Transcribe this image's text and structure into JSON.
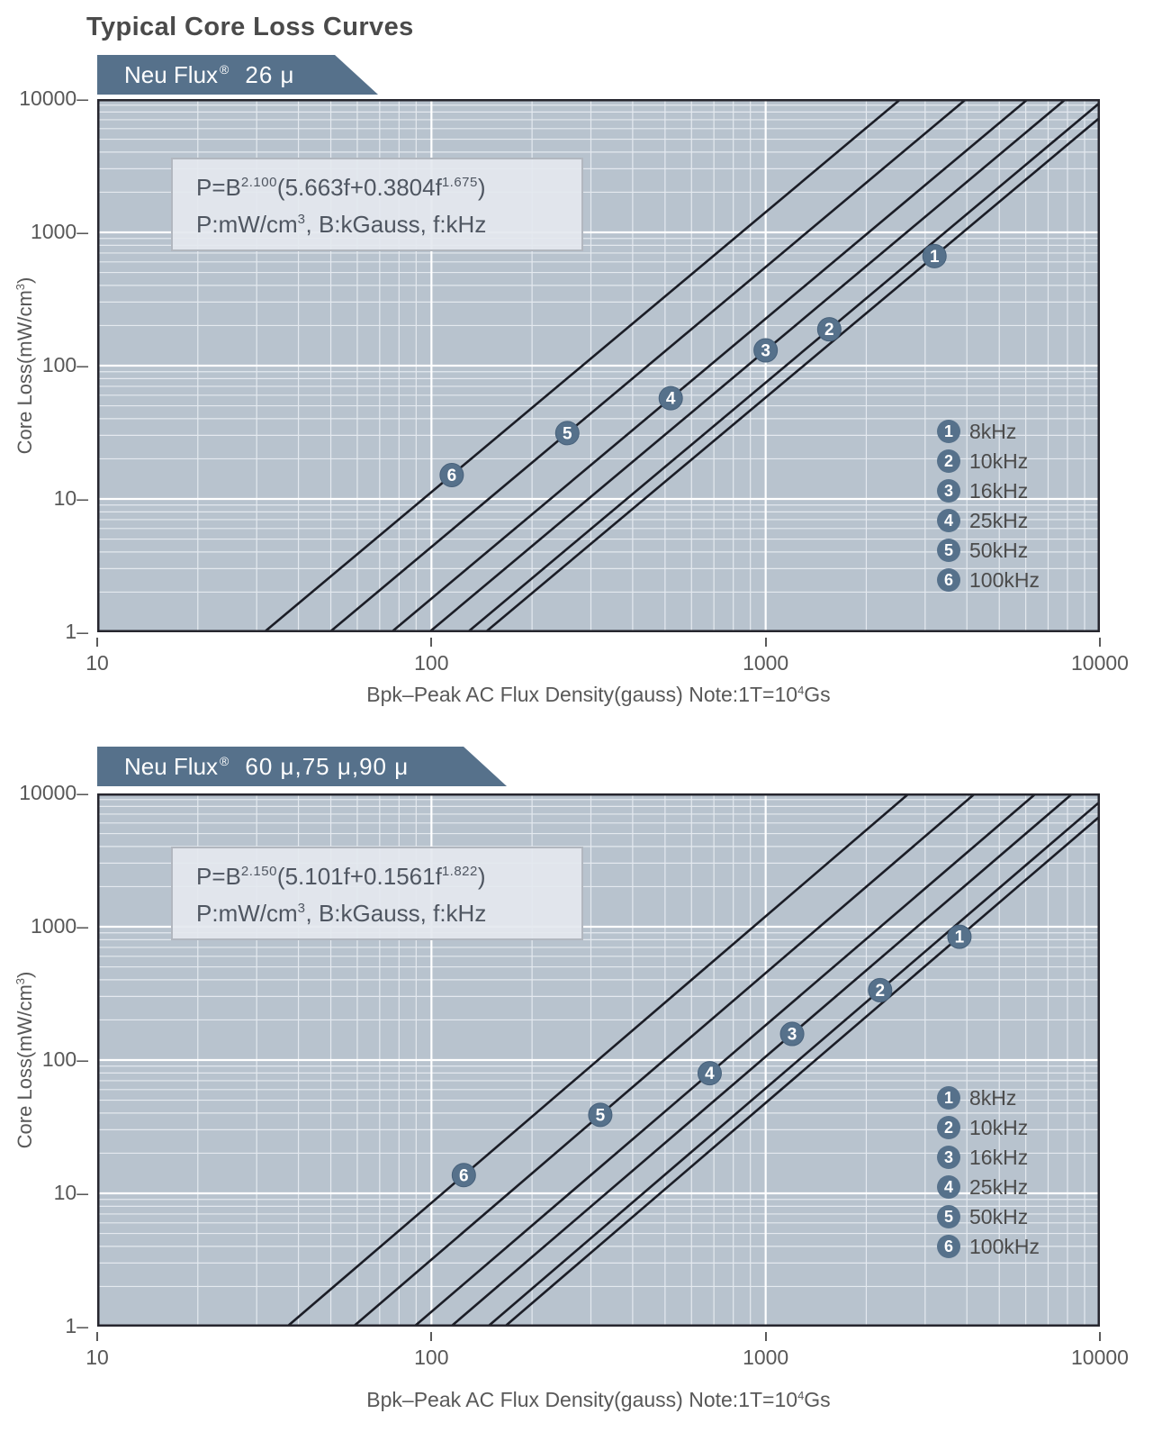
{
  "page": {
    "title": "Typical Core Loss Curves"
  },
  "colors": {
    "banner": "#56718b",
    "banner_text": "#ffffff",
    "plot_background": "#b8c3ce",
    "grid_minor": "#e4e9ef",
    "grid_major": "#ffffff",
    "curve": "#1b1d26",
    "plot_border": "#26262e",
    "marker_fill": "#56718b",
    "marker_ring": "#47617b",
    "marker_number": "#ffffff",
    "title_text": "#4a4a4a",
    "axis_text": "#585858",
    "legend_text": "#4b4b4b",
    "formula_text": "#4f5661",
    "formula_box_bg": "#e4e8ef",
    "formula_box_border": "#b2b7bf"
  },
  "chart_data": [
    {
      "type": "line",
      "title": "Neu Flux® 26 μ",
      "banner": {
        "brand": "Neu Flux",
        "reg": "®",
        "variant": "26 μ"
      },
      "formula": {
        "lhs": "P=B",
        "b_exponent": "2.100",
        "mid": "(5.663f+0.3804f",
        "f_exponent": "1.675",
        "close": ")",
        "units_pre": "P:mW/cm",
        "units_sup": "3",
        "units_post": ", B:kGauss, f:kHz"
      },
      "model": {
        "equation": "P = B^2.100 * (5.663*f + 0.3804*f^1.675)",
        "B_exponent": 2.1,
        "f_linear_coef": 5.663,
        "f_power_coef": 0.3804,
        "f_exponent": 1.675,
        "P_unit": "mW/cm3",
        "B_unit": "kGauss",
        "f_unit": "kHz"
      },
      "x_axis": {
        "label_pre": "Bpk–Peak AC Flux Density(gauss) Note:1T=10",
        "label_sup": "4",
        "label_post": "Gs",
        "scale": "log",
        "min": 10,
        "max": 10000,
        "tick_labels": [
          "10",
          "100",
          "1000",
          "10000"
        ]
      },
      "y_axis": {
        "label_pre": "Core Loss(mW/cm",
        "label_sup": "3",
        "label_post": ")",
        "scale": "log",
        "min": 1,
        "max": 10000,
        "tick_labels": [
          "10000",
          "1000",
          "100",
          "10",
          "1"
        ],
        "tick_suffix": "–"
      },
      "grid": true,
      "legend_position": "right-middle",
      "series": [
        {
          "num": "1",
          "label": "8kHz",
          "f_kHz": 8,
          "marker_point": {
            "x_gauss": 3200,
            "y_mW_per_cm3": 663
          }
        },
        {
          "num": "2",
          "label": "10kHz",
          "f_kHz": 10,
          "marker_point": {
            "x_gauss": 1550,
            "y_mW_per_cm3": 187
          }
        },
        {
          "num": "3",
          "label": "16kHz",
          "f_kHz": 16,
          "marker_point": {
            "x_gauss": 1000,
            "y_mW_per_cm3": 130
          }
        },
        {
          "num": "4",
          "label": "25kHz",
          "f_kHz": 25,
          "marker_point": {
            "x_gauss": 520,
            "y_mW_per_cm3": 57
          }
        },
        {
          "num": "5",
          "label": "50kHz",
          "f_kHz": 50,
          "marker_point": {
            "x_gauss": 255,
            "y_mW_per_cm3": 31
          }
        },
        {
          "num": "6",
          "label": "100kHz",
          "f_kHz": 100,
          "marker_point": {
            "x_gauss": 115,
            "y_mW_per_cm3": 15
          }
        }
      ]
    },
    {
      "type": "line",
      "title": "Neu Flux® 60 μ,75 μ,90 μ",
      "banner": {
        "brand": "Neu Flux",
        "reg": "®",
        "variant": "60 μ,75 μ,90 μ"
      },
      "formula": {
        "lhs": "P=B",
        "b_exponent": "2.150",
        "mid": "(5.101f+0.1561f",
        "f_exponent": "1.822",
        "close": ")",
        "units_pre": "P:mW/cm",
        "units_sup": "3",
        "units_post": ", B:kGauss, f:kHz"
      },
      "model": {
        "equation": "P = B^2.150 * (5.101*f + 0.1561*f^1.822)",
        "B_exponent": 2.15,
        "f_linear_coef": 5.101,
        "f_power_coef": 0.1561,
        "f_exponent": 1.822,
        "P_unit": "mW/cm3",
        "B_unit": "kGauss",
        "f_unit": "kHz"
      },
      "x_axis": {
        "label_pre": "Bpk–Peak AC Flux Density(gauss) Note:1T=10",
        "label_sup": "4",
        "label_post": "Gs",
        "scale": "log",
        "min": 10,
        "max": 10000,
        "tick_labels": [
          "10",
          "100",
          "1000",
          "10000"
        ]
      },
      "y_axis": {
        "label_pre": "Core Loss(mW/cm",
        "label_sup": "3",
        "label_post": ")",
        "scale": "log",
        "min": 1,
        "max": 10000,
        "tick_labels": [
          "10000",
          "1000",
          "100",
          "10",
          "1"
        ],
        "tick_suffix": "–"
      },
      "grid": true,
      "legend_position": "right-middle",
      "series": [
        {
          "num": "1",
          "label": "8kHz",
          "f_kHz": 8,
          "marker_point": {
            "x_gauss": 3800,
            "y_mW_per_cm3": 842
          }
        },
        {
          "num": "2",
          "label": "10kHz",
          "f_kHz": 10,
          "marker_point": {
            "x_gauss": 2200,
            "y_mW_per_cm3": 334
          }
        },
        {
          "num": "3",
          "label": "16kHz",
          "f_kHz": 16,
          "marker_point": {
            "x_gauss": 1200,
            "y_mW_per_cm3": 157
          }
        },
        {
          "num": "4",
          "label": "25kHz",
          "f_kHz": 25,
          "marker_point": {
            "x_gauss": 680,
            "y_mW_per_cm3": 80
          }
        },
        {
          "num": "5",
          "label": "50kHz",
          "f_kHz": 50,
          "marker_point": {
            "x_gauss": 320,
            "y_mW_per_cm3": 39
          }
        },
        {
          "num": "6",
          "label": "100kHz",
          "f_kHz": 100,
          "marker_point": {
            "x_gauss": 125,
            "y_mW_per_cm3": 14
          }
        }
      ]
    }
  ]
}
